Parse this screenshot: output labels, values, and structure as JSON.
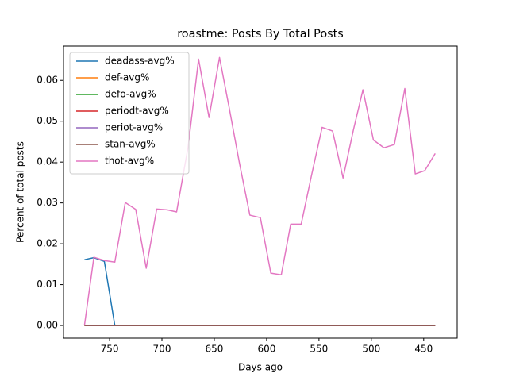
{
  "chart_data": {
    "type": "line",
    "title": "roastme: Posts By Total Posts",
    "xlabel": "Days ago",
    "ylabel": "Percent of total posts",
    "x": [
      774,
      765,
      755,
      745,
      735,
      725,
      715,
      705,
      695,
      686,
      675,
      665,
      655,
      645,
      636,
      626,
      616,
      606,
      596,
      586,
      577,
      567,
      557,
      547,
      537,
      527,
      517,
      508,
      498,
      488,
      478,
      468,
      458,
      449,
      439
    ],
    "series": [
      {
        "name": "deadass-avg%",
        "color": "#1f77b4",
        "values": [
          0.0161,
          0.0166,
          0.0157,
          0,
          0,
          0,
          0,
          0,
          0,
          0,
          0,
          0,
          0,
          0,
          0,
          0,
          0,
          0,
          0,
          0,
          0,
          0,
          0,
          0,
          0,
          0,
          0,
          0,
          0,
          0,
          0,
          0,
          0,
          0,
          0
        ]
      },
      {
        "name": "def-avg%",
        "color": "#ff7f0e",
        "values": [
          0,
          0,
          0,
          0,
          0,
          0,
          0,
          0,
          0,
          0,
          0,
          0,
          0,
          0,
          0,
          0,
          0,
          0,
          0,
          0,
          0,
          0,
          0,
          0,
          0,
          0,
          0,
          0,
          0,
          0,
          0,
          0,
          0,
          0,
          0
        ]
      },
      {
        "name": "defo-avg%",
        "color": "#2ca02c",
        "values": [
          0,
          0,
          0,
          0,
          0,
          0,
          0,
          0,
          0,
          0,
          0,
          0,
          0,
          0,
          0,
          0,
          0,
          0,
          0,
          0,
          0,
          0,
          0,
          0,
          0,
          0,
          0,
          0,
          0,
          0,
          0,
          0,
          0,
          0,
          0
        ]
      },
      {
        "name": "periodt-avg%",
        "color": "#d62728",
        "values": [
          0,
          0,
          0,
          0,
          0,
          0,
          0,
          0,
          0,
          0,
          0,
          0,
          0,
          0,
          0,
          0,
          0,
          0,
          0,
          0,
          0,
          0,
          0,
          0,
          0,
          0,
          0,
          0,
          0,
          0,
          0,
          0,
          0,
          0,
          0
        ]
      },
      {
        "name": "periot-avg%",
        "color": "#9467bd",
        "values": [
          0,
          0,
          0,
          0,
          0,
          0,
          0,
          0,
          0,
          0,
          0,
          0,
          0,
          0,
          0,
          0,
          0,
          0,
          0,
          0,
          0,
          0,
          0,
          0,
          0,
          0,
          0,
          0,
          0,
          0,
          0,
          0,
          0,
          0,
          0
        ]
      },
      {
        "name": "stan-avg%",
        "color": "#8c564b",
        "values": [
          0,
          0,
          0,
          0,
          0,
          0,
          0,
          0,
          0,
          0,
          0,
          0,
          0,
          0,
          0,
          0,
          0,
          0,
          0,
          0,
          0,
          0,
          0,
          0,
          0,
          0,
          0,
          0,
          0,
          0,
          0,
          0,
          0,
          0,
          0
        ]
      },
      {
        "name": "thot-avg%",
        "color": "#e377c2",
        "values": [
          0,
          0.0167,
          0.0159,
          0.0155,
          0.0301,
          0.0284,
          0.014,
          0.0285,
          0.0283,
          0.0278,
          0.0437,
          0.0652,
          0.0509,
          0.0656,
          0.0536,
          0.0398,
          0.027,
          0.0264,
          0.0128,
          0.0124,
          0.0248,
          0.0248,
          0.0369,
          0.0485,
          0.0476,
          0.0361,
          0.048,
          0.0577,
          0.0454,
          0.0435,
          0.0443,
          0.058,
          0.0371,
          0.0379,
          0.0421
        ]
      }
    ],
    "xlim": [
      794,
      418
    ],
    "xticks": [
      750,
      700,
      650,
      600,
      550,
      500,
      450
    ],
    "ylim": [
      -0.0031,
      0.0684
    ],
    "yticks": [
      {
        "value": 0,
        "label": "0.00"
      },
      {
        "value": 0.01,
        "label": "0.01"
      },
      {
        "value": 0.02,
        "label": "0.02"
      },
      {
        "value": 0.03,
        "label": "0.03"
      },
      {
        "value": 0.04,
        "label": "0.04"
      },
      {
        "value": 0.05,
        "label": "0.05"
      },
      {
        "value": 0.06,
        "label": "0.06"
      }
    ],
    "legend": "upper-left"
  }
}
